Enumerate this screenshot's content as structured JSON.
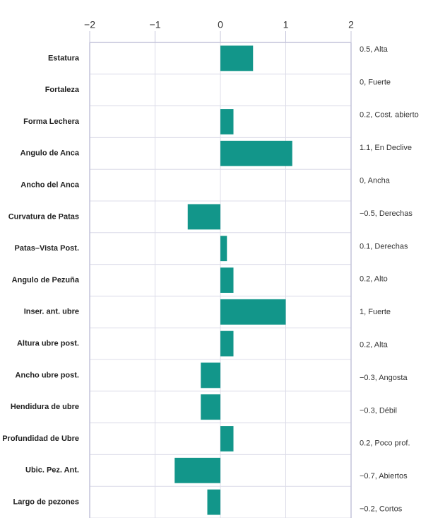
{
  "chart_data": {
    "type": "bar",
    "orientation": "horizontal",
    "categories": [
      "Estatura",
      "Fortaleza",
      "Forma Lechera",
      "Angulo de Anca",
      "Ancho del Anca",
      "Curvatura de Patas",
      "Patas–Vista Post.",
      "Angulo de Pezuña",
      "Inser. ant. ubre",
      "Altura ubre post.",
      "Ancho ubre post.",
      "Hendidura de ubre",
      "Profundidad de Ubre",
      "Ubic. Pez. Ant.",
      "Largo de pezones"
    ],
    "values": [
      0.5,
      0,
      0.2,
      1.1,
      0,
      -0.5,
      0.1,
      0.2,
      1,
      0.2,
      -0.3,
      -0.3,
      0.2,
      -0.7,
      -0.2
    ],
    "value_labels": [
      "0.5, Alta",
      "0, Fuerte",
      "0.2, Cost. abierto",
      "1.1, En Declive",
      "0, Ancha",
      "−0.5, Derechas",
      "0.1, Derechas",
      "0.2, Alto",
      "1, Fuerte",
      "0.2, Alta",
      "−0.3, Angosta",
      "−0.3, Débil",
      "0.2, Poco prof.",
      "−0.7, Abiertos",
      "−0.2, Cortos"
    ],
    "color": "#12968a",
    "xlim": [
      -2,
      2
    ],
    "xticks": [
      {
        "value": -2,
        "label": "−2"
      },
      {
        "value": -1,
        "label": "−1"
      },
      0,
      1,
      2
    ],
    "grid": true
  }
}
